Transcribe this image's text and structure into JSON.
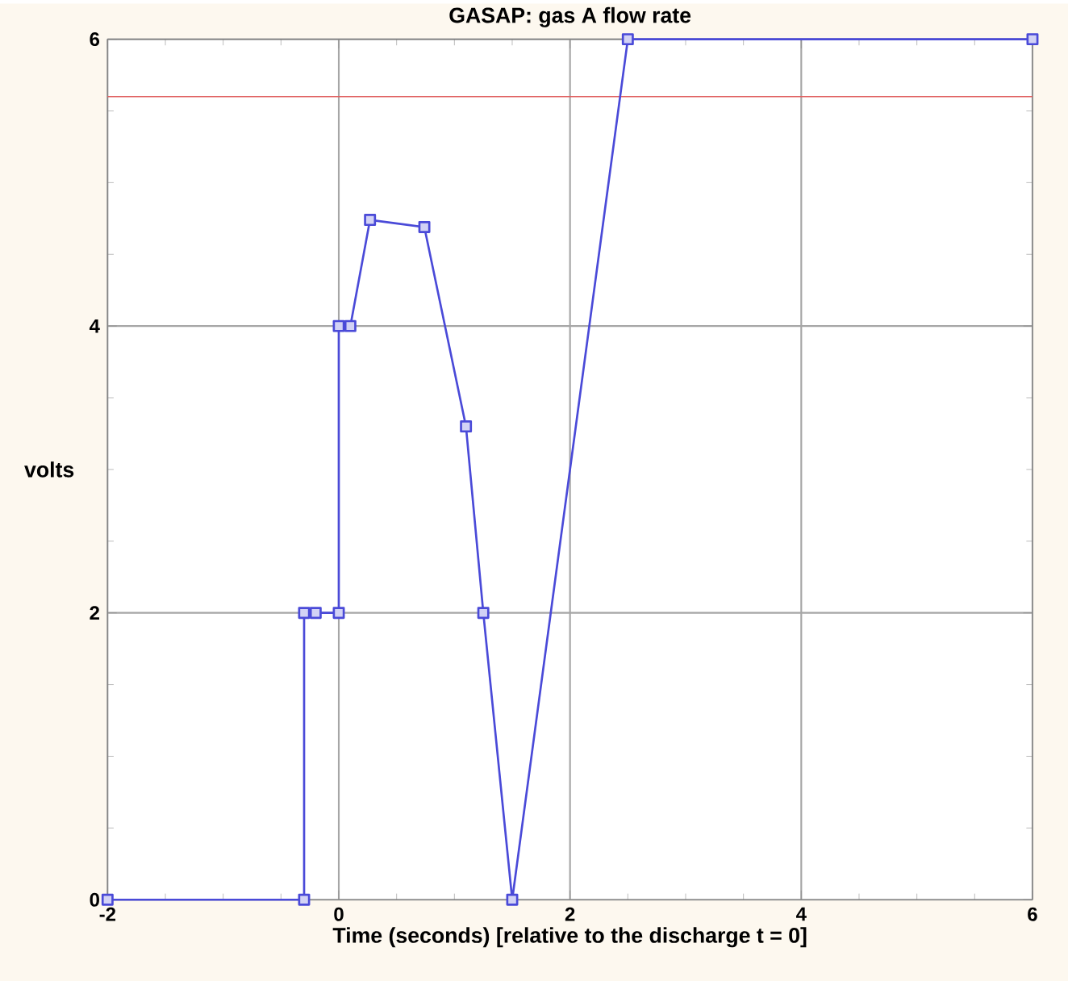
{
  "chart_data": {
    "type": "line",
    "title": "GASAP: gas A flow rate",
    "xlabel": "Time (seconds) [relative to the discharge t = 0]",
    "ylabel": "volts",
    "series": [
      {
        "color": "#4a4ad8",
        "x": [
          -2,
          -0.3,
          -0.3,
          -0.2,
          0,
          0,
          0.1,
          0.27,
          0.74,
          1.1,
          1.25,
          1.5,
          2.5,
          6
        ],
        "values": [
          0,
          0,
          2,
          2,
          2,
          4,
          4,
          4.74,
          4.69,
          3.3,
          2,
          0,
          6,
          6
        ]
      }
    ],
    "xlim": [
      -2,
      6
    ],
    "ylim": [
      0,
      6
    ],
    "xticks": [
      -2,
      0,
      2,
      4,
      6
    ],
    "yticks": [
      0,
      2,
      4,
      6
    ],
    "ref_lines": [
      {
        "axis": "y",
        "value": 5.6,
        "color": "#e06060"
      }
    ],
    "grid": true,
    "marker": "square",
    "line_style": "solid"
  }
}
